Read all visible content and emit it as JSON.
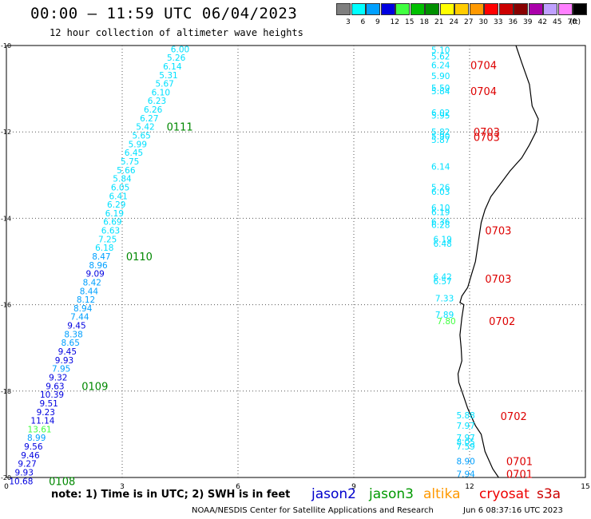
{
  "header": {
    "title": "00:00 – 11:59 UTC 06/04/2023",
    "subtitle": "12 hour collection of altimeter wave heights"
  },
  "colorbar": {
    "unit_label": "(ft)",
    "swatches": [
      {
        "color": "#7f7f7f",
        "label": "3"
      },
      {
        "color": "#00ffff",
        "label": "6"
      },
      {
        "color": "#00a0ff",
        "label": "9"
      },
      {
        "color": "#0000e0",
        "label": "12"
      },
      {
        "color": "#40ff40",
        "label": "15"
      },
      {
        "color": "#00c000",
        "label": "18"
      },
      {
        "color": "#009000",
        "label": "21"
      },
      {
        "color": "#ffff00",
        "label": "24"
      },
      {
        "color": "#ffcc00",
        "label": "27"
      },
      {
        "color": "#ff9900",
        "label": "30"
      },
      {
        "color": "#ff0000",
        "label": "33"
      },
      {
        "color": "#cc0000",
        "label": "36"
      },
      {
        "color": "#880000",
        "label": "39"
      },
      {
        "color": "#aa00aa",
        "label": "42"
      },
      {
        "color": "#c0a0ff",
        "label": "45"
      },
      {
        "color": "#ff80ff",
        "label": "70"
      },
      {
        "color": "#000000",
        "label": ""
      }
    ]
  },
  "map": {
    "x_ticks": [
      "0",
      "3",
      "6",
      "9",
      "12",
      "15"
    ],
    "y_ticks": [
      "-10",
      "-12",
      "-14",
      "-16",
      "-18",
      "-20"
    ],
    "grid": "dotted",
    "lat_range": [
      -20,
      -10
    ],
    "lon_range": [
      0,
      15
    ],
    "coastline": [
      [
        13.2,
        -10.0
      ],
      [
        13.35,
        -10.4
      ],
      [
        13.55,
        -10.9
      ],
      [
        13.62,
        -11.4
      ],
      [
        13.78,
        -11.7
      ],
      [
        13.72,
        -12.0
      ],
      [
        13.55,
        -12.3
      ],
      [
        13.35,
        -12.6
      ],
      [
        13.05,
        -12.9
      ],
      [
        12.8,
        -13.2
      ],
      [
        12.55,
        -13.5
      ],
      [
        12.4,
        -13.8
      ],
      [
        12.3,
        -14.1
      ],
      [
        12.25,
        -14.4
      ],
      [
        12.2,
        -14.7
      ],
      [
        12.15,
        -15.0
      ],
      [
        12.05,
        -15.3
      ],
      [
        11.95,
        -15.6
      ],
      [
        11.8,
        -15.8
      ],
      [
        11.75,
        -15.95
      ],
      [
        11.85,
        -16.0
      ],
      [
        11.8,
        -16.3
      ],
      [
        11.75,
        -16.7
      ],
      [
        11.78,
        -17.0
      ],
      [
        11.8,
        -17.3
      ],
      [
        11.7,
        -17.6
      ],
      [
        11.72,
        -17.8
      ],
      [
        11.8,
        -18.0
      ],
      [
        11.95,
        -18.4
      ],
      [
        12.15,
        -18.8
      ],
      [
        12.3,
        -19.0
      ],
      [
        12.4,
        -19.4
      ],
      [
        12.6,
        -19.8
      ],
      [
        12.75,
        -20.0
      ]
    ],
    "points": [
      {
        "lat": -10.08,
        "lon": 4.5,
        "v": "6.00",
        "c": "#00e0ff"
      },
      {
        "lat": -10.28,
        "lon": 4.4,
        "v": "5.26",
        "c": "#00e0ff"
      },
      {
        "lat": -10.48,
        "lon": 4.3,
        "v": "6.14",
        "c": "#00e0ff"
      },
      {
        "lat": -10.68,
        "lon": 4.2,
        "v": "5.31",
        "c": "#00e0ff"
      },
      {
        "lat": -10.88,
        "lon": 4.1,
        "v": "5.67",
        "c": "#00e0ff"
      },
      {
        "lat": -11.08,
        "lon": 4.0,
        "v": "6.10",
        "c": "#00e0ff"
      },
      {
        "lat": -11.28,
        "lon": 3.9,
        "v": "6.23",
        "c": "#00e0ff"
      },
      {
        "lat": -11.48,
        "lon": 3.8,
        "v": "6.26",
        "c": "#00e0ff"
      },
      {
        "lat": -11.68,
        "lon": 3.7,
        "v": "6.27",
        "c": "#00e0ff"
      },
      {
        "lat": -11.88,
        "lon": 3.6,
        "v": "5.42",
        "c": "#00e0ff"
      },
      {
        "lat": -12.08,
        "lon": 3.5,
        "v": "5.65",
        "c": "#00e0ff"
      },
      {
        "lat": -12.28,
        "lon": 3.4,
        "v": "5.99",
        "c": "#00e0ff"
      },
      {
        "lat": -12.48,
        "lon": 3.3,
        "v": "6.45",
        "c": "#00e0ff"
      },
      {
        "lat": -12.68,
        "lon": 3.2,
        "v": "5.75",
        "c": "#00e0ff"
      },
      {
        "lat": -12.88,
        "lon": 3.1,
        "v": "5.66",
        "c": "#00e0ff"
      },
      {
        "lat": -13.08,
        "lon": 3.0,
        "v": "5.84",
        "c": "#00e0ff"
      },
      {
        "lat": -13.28,
        "lon": 2.95,
        "v": "6.05",
        "c": "#00e0ff"
      },
      {
        "lat": -13.48,
        "lon": 2.9,
        "v": "6.41",
        "c": "#00e0ff"
      },
      {
        "lat": -13.68,
        "lon": 2.85,
        "v": "6.29",
        "c": "#00e0ff"
      },
      {
        "lat": -13.88,
        "lon": 2.8,
        "v": "6.19",
        "c": "#00e0ff"
      },
      {
        "lat": -14.08,
        "lon": 2.75,
        "v": "6.69",
        "c": "#00e0ff"
      },
      {
        "lat": -14.28,
        "lon": 2.7,
        "v": "6.63",
        "c": "#00e0ff"
      },
      {
        "lat": -14.48,
        "lon": 2.62,
        "v": "7.25",
        "c": "#00e0ff"
      },
      {
        "lat": -14.68,
        "lon": 2.54,
        "v": "6.18",
        "c": "#00e0ff"
      },
      {
        "lat": -14.88,
        "lon": 2.46,
        "v": "8.47",
        "c": "#00a0ff"
      },
      {
        "lat": -15.08,
        "lon": 2.38,
        "v": "8.96",
        "c": "#00a0ff"
      },
      {
        "lat": -15.28,
        "lon": 2.3,
        "v": "9.09",
        "c": "#0000e0"
      },
      {
        "lat": -15.48,
        "lon": 2.22,
        "v": "8.42",
        "c": "#00a0ff"
      },
      {
        "lat": -15.68,
        "lon": 2.14,
        "v": "8.44",
        "c": "#00a0ff"
      },
      {
        "lat": -15.88,
        "lon": 2.06,
        "v": "8.12",
        "c": "#00a0ff"
      },
      {
        "lat": -16.08,
        "lon": 1.98,
        "v": "8.94",
        "c": "#00a0ff"
      },
      {
        "lat": -16.28,
        "lon": 1.9,
        "v": "7.44",
        "c": "#00a0ff"
      },
      {
        "lat": -16.48,
        "lon": 1.82,
        "v": "9.45",
        "c": "#0000e0"
      },
      {
        "lat": -16.68,
        "lon": 1.74,
        "v": "8.38",
        "c": "#00a0ff"
      },
      {
        "lat": -16.88,
        "lon": 1.66,
        "v": "8.65",
        "c": "#00a0ff"
      },
      {
        "lat": -17.08,
        "lon": 1.58,
        "v": "9.45",
        "c": "#0000e0"
      },
      {
        "lat": -17.28,
        "lon": 1.5,
        "v": "9.93",
        "c": "#0000e0"
      },
      {
        "lat": -17.48,
        "lon": 1.42,
        "v": "7.95",
        "c": "#00a0ff"
      },
      {
        "lat": -17.68,
        "lon": 1.34,
        "v": "9.32",
        "c": "#0000e0"
      },
      {
        "lat": -17.88,
        "lon": 1.26,
        "v": "9.63",
        "c": "#0000e0"
      },
      {
        "lat": -18.08,
        "lon": 1.18,
        "v": "10.39",
        "c": "#0000e0"
      },
      {
        "lat": -18.28,
        "lon": 1.1,
        "v": "9.51",
        "c": "#0000e0"
      },
      {
        "lat": -18.48,
        "lon": 1.02,
        "v": "9.23",
        "c": "#0000e0"
      },
      {
        "lat": -18.68,
        "lon": 0.94,
        "v": "11.14",
        "c": "#0000e0"
      },
      {
        "lat": -18.88,
        "lon": 0.86,
        "v": "13.61",
        "c": "#40ff40"
      },
      {
        "lat": -19.08,
        "lon": 0.78,
        "v": "8.99",
        "c": "#00a0ff"
      },
      {
        "lat": -19.28,
        "lon": 0.7,
        "v": "9.56",
        "c": "#0000e0"
      },
      {
        "lat": -19.48,
        "lon": 0.62,
        "v": "9.46",
        "c": "#0000e0"
      },
      {
        "lat": -19.68,
        "lon": 0.54,
        "v": "9.27",
        "c": "#0000e0"
      },
      {
        "lat": -19.88,
        "lon": 0.46,
        "v": "9.93",
        "c": "#0000e0"
      },
      {
        "lat": -20.08,
        "lon": 0.38,
        "v": "10.68",
        "c": "#0000e0"
      },
      {
        "lat": -10.1,
        "lon": 11.25,
        "v": "5.10",
        "c": "#00e0ff"
      },
      {
        "lat": -10.25,
        "lon": 11.25,
        "v": "5.62",
        "c": "#00e0ff"
      },
      {
        "lat": -10.45,
        "lon": 11.25,
        "v": "6.24",
        "c": "#00e0ff"
      },
      {
        "lat": -10.7,
        "lon": 11.25,
        "v": "5.90",
        "c": "#00e0ff"
      },
      {
        "lat": -10.98,
        "lon": 11.25,
        "v": "5.50",
        "c": "#00e0ff"
      },
      {
        "lat": -11.05,
        "lon": 11.25,
        "v": "5.84",
        "c": "#00e0ff"
      },
      {
        "lat": -11.55,
        "lon": 11.25,
        "v": "6.02",
        "c": "#00e0ff"
      },
      {
        "lat": -11.62,
        "lon": 11.25,
        "v": "5.95",
        "c": "#00e0ff"
      },
      {
        "lat": -12.0,
        "lon": 11.25,
        "v": "5.82",
        "c": "#00e0ff"
      },
      {
        "lat": -12.1,
        "lon": 11.25,
        "v": "5.90",
        "c": "#00e0ff"
      },
      {
        "lat": -12.18,
        "lon": 11.25,
        "v": "5.87",
        "c": "#00e0ff"
      },
      {
        "lat": -12.8,
        "lon": 11.25,
        "v": "6.14",
        "c": "#00e0ff"
      },
      {
        "lat": -13.28,
        "lon": 11.25,
        "v": "5.26",
        "c": "#00e0ff"
      },
      {
        "lat": -13.38,
        "lon": 11.25,
        "v": "6.03",
        "c": "#00e0ff"
      },
      {
        "lat": -13.75,
        "lon": 11.25,
        "v": "6.10",
        "c": "#00e0ff"
      },
      {
        "lat": -13.85,
        "lon": 11.25,
        "v": "6.19",
        "c": "#00e0ff"
      },
      {
        "lat": -14.08,
        "lon": 11.25,
        "v": "6.36",
        "c": "#00e0ff"
      },
      {
        "lat": -14.15,
        "lon": 11.25,
        "v": "6.28",
        "c": "#00e0ff"
      },
      {
        "lat": -14.48,
        "lon": 11.3,
        "v": "6.19",
        "c": "#00e0ff"
      },
      {
        "lat": -14.58,
        "lon": 11.3,
        "v": "6.48",
        "c": "#00e0ff"
      },
      {
        "lat": -15.35,
        "lon": 11.3,
        "v": "6.42",
        "c": "#00e0ff"
      },
      {
        "lat": -15.45,
        "lon": 11.3,
        "v": "6.57",
        "c": "#00e0ff"
      },
      {
        "lat": -15.85,
        "lon": 11.35,
        "v": "7.33",
        "c": "#00e0ff"
      },
      {
        "lat": -16.23,
        "lon": 11.35,
        "v": "7.89",
        "c": "#00e0ff"
      },
      {
        "lat": -16.38,
        "lon": 11.4,
        "v": "7.80",
        "c": "#40ff40"
      },
      {
        "lat": -18.56,
        "lon": 11.9,
        "v": "5.88",
        "c": "#00e0ff"
      },
      {
        "lat": -18.8,
        "lon": 11.9,
        "v": "7.97",
        "c": "#00e0ff"
      },
      {
        "lat": -19.08,
        "lon": 11.9,
        "v": "7.97",
        "c": "#00e0ff"
      },
      {
        "lat": -19.18,
        "lon": 11.9,
        "v": "8.05",
        "c": "#00e0ff"
      },
      {
        "lat": -19.28,
        "lon": 11.9,
        "v": "7.59",
        "c": "#00e0ff"
      },
      {
        "lat": -19.62,
        "lon": 11.9,
        "v": "8.90",
        "c": "#00a0ff"
      },
      {
        "lat": -19.92,
        "lon": 11.9,
        "v": "7.94",
        "c": "#00a0ff"
      }
    ],
    "time_labels": [
      {
        "lat": -11.88,
        "lon": 4.15,
        "t": "0111",
        "c": "#008800"
      },
      {
        "lat": -14.88,
        "lon": 3.1,
        "t": "0110",
        "c": "#008800"
      },
      {
        "lat": -17.88,
        "lon": 1.95,
        "t": "0109",
        "c": "#008800"
      },
      {
        "lat": -20.08,
        "lon": 1.1,
        "t": "0108",
        "c": "#008800"
      },
      {
        "lat": -10.45,
        "lon": 12.02,
        "t": "0704",
        "c": "#dd0000"
      },
      {
        "lat": -11.05,
        "lon": 12.02,
        "t": "0704",
        "c": "#dd0000"
      },
      {
        "lat": -12.0,
        "lon": 12.1,
        "t": "0703",
        "c": "#dd0000"
      },
      {
        "lat": -12.12,
        "lon": 12.1,
        "t": "0703",
        "c": "#dd0000"
      },
      {
        "lat": -14.28,
        "lon": 12.4,
        "t": "0703",
        "c": "#dd0000"
      },
      {
        "lat": -15.4,
        "lon": 12.4,
        "t": "0703",
        "c": "#dd0000"
      },
      {
        "lat": -16.38,
        "lon": 12.5,
        "t": "0702",
        "c": "#dd0000"
      },
      {
        "lat": -18.58,
        "lon": 12.8,
        "t": "0702",
        "c": "#dd0000"
      },
      {
        "lat": -19.62,
        "lon": 12.95,
        "t": "0701",
        "c": "#dd0000"
      },
      {
        "lat": -19.92,
        "lon": 12.95,
        "t": "0701",
        "c": "#dd0000"
      }
    ]
  },
  "note": "note:  1) Time is in UTC; 2) SWH is in feet",
  "satellites": [
    {
      "name": "jason2",
      "color": "#0000cc"
    },
    {
      "name": "jason3",
      "color": "#009900"
    },
    {
      "name": "altika",
      "color": "#ff9900"
    },
    {
      "name": "cryosat",
      "color": "#ee0000"
    },
    {
      "name": "s3a",
      "color": "#cc0000"
    }
  ],
  "footer": {
    "credit": "NOAA/NESDIS Center for Satellite Applications and Research",
    "timestamp": "Jun  6 08:37:16 UTC 2023"
  }
}
